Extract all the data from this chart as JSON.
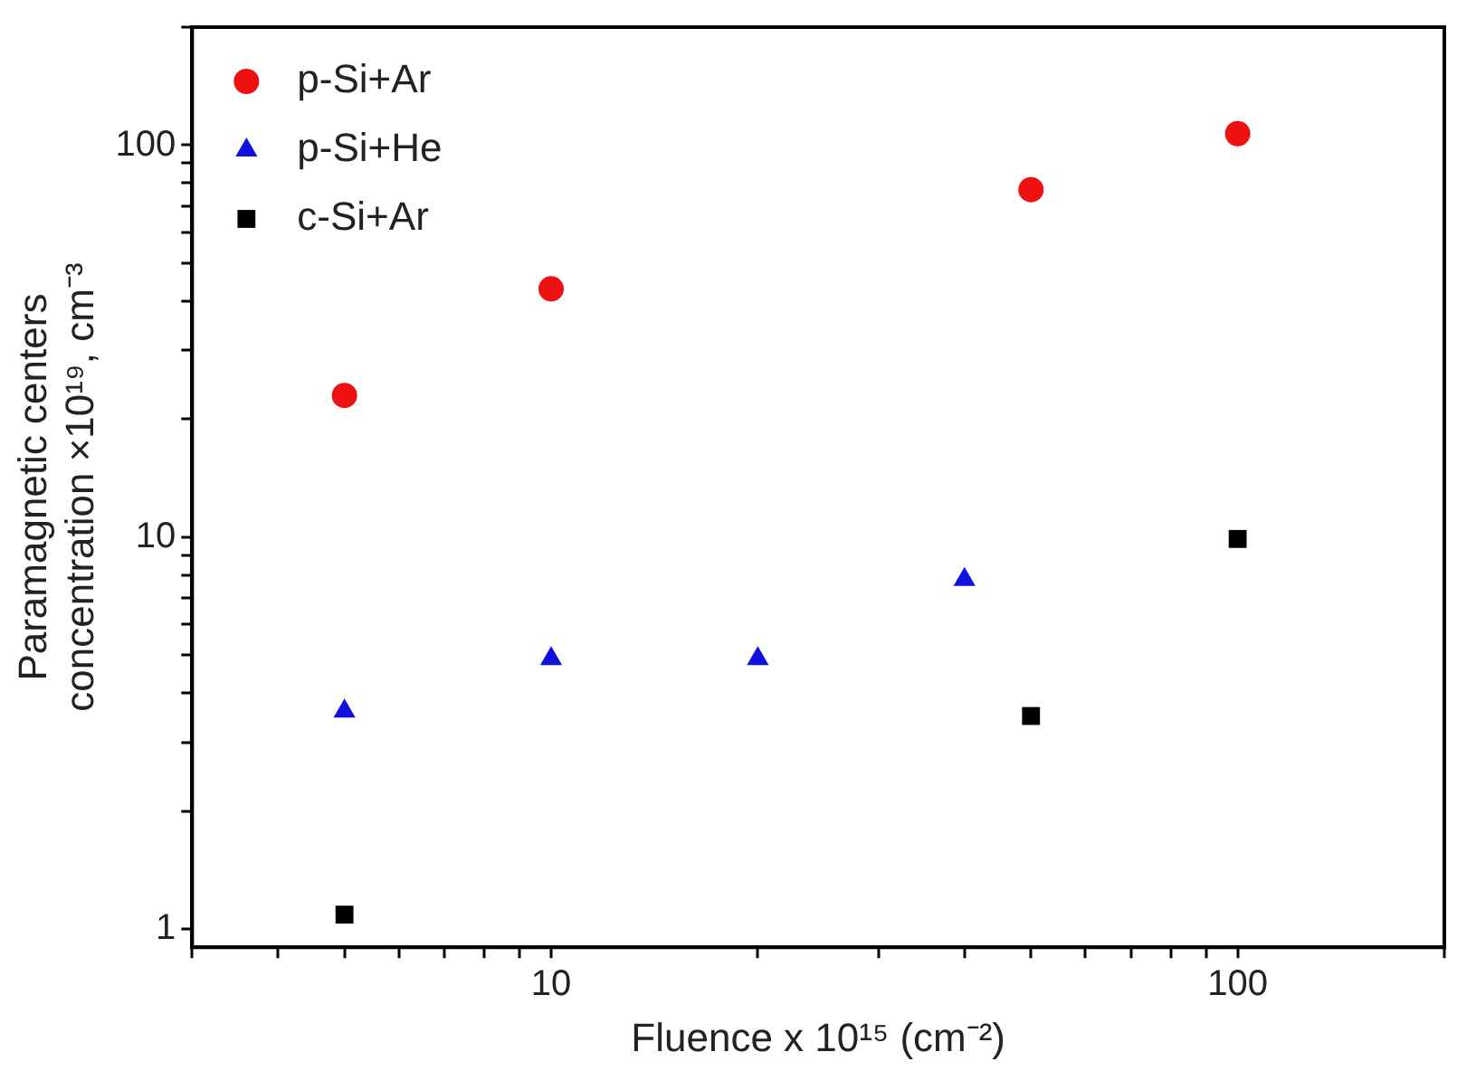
{
  "chart_data": {
    "type": "scatter",
    "xlabel": "Fluence x 10¹⁵ (cm⁻²)",
    "ylabel": "Paramagnetic centers concentration ×10¹⁹, cm⁻³",
    "log": "xy",
    "grid": false,
    "legend": "top left",
    "xlim": [
      3,
      200
    ],
    "ylim": [
      0.9,
      200
    ],
    "xticks": [
      {
        "value": 3,
        "label": null
      },
      {
        "value": 4,
        "label": null
      },
      {
        "value": 5,
        "label": null
      },
      {
        "value": 6,
        "label": null
      },
      {
        "value": 7,
        "label": null
      },
      {
        "value": 8,
        "label": null
      },
      {
        "value": 9,
        "label": null
      },
      10,
      {
        "value": 20,
        "label": null
      },
      {
        "value": 30,
        "label": null
      },
      {
        "value": 40,
        "label": null
      },
      {
        "value": 50,
        "label": null
      },
      {
        "value": 60,
        "label": null
      },
      {
        "value": 70,
        "label": null
      },
      {
        "value": 80,
        "label": null
      },
      {
        "value": 90,
        "label": null
      },
      100,
      {
        "value": 200,
        "label": null
      }
    ],
    "yticks": [
      1,
      {
        "value": 2,
        "label": null
      },
      {
        "value": 3,
        "label": null
      },
      {
        "value": 4,
        "label": null
      },
      {
        "value": 5,
        "label": null
      },
      {
        "value": 6,
        "label": null
      },
      {
        "value": 7,
        "label": null
      },
      {
        "value": 8,
        "label": null
      },
      {
        "value": 9,
        "label": null
      },
      10,
      {
        "value": 20,
        "label": null
      },
      {
        "value": 30,
        "label": null
      },
      {
        "value": 40,
        "label": null
      },
      {
        "value": 50,
        "label": null
      },
      {
        "value": 60,
        "label": null
      },
      {
        "value": 70,
        "label": null
      },
      {
        "value": 80,
        "label": null
      },
      {
        "value": 90,
        "label": null
      },
      100,
      {
        "value": 200,
        "label": null
      }
    ],
    "series": [
      {
        "name": "p-Si+Ar",
        "color": "#ee1111",
        "marker": "circle",
        "x": [
          5,
          10,
          50,
          100
        ],
        "values": [
          23,
          43,
          77,
          107
        ]
      },
      {
        "name": "p-Si+He",
        "color": "#1111dd",
        "marker": "triangle",
        "x": [
          5,
          10,
          20,
          40
        ],
        "values": [
          3.6,
          4.9,
          4.9,
          7.8
        ]
      },
      {
        "name": "c-Si+Ar",
        "color": "#000000",
        "marker": "square",
        "x": [
          5,
          50,
          100
        ],
        "values": [
          1.09,
          3.5,
          9.9
        ]
      }
    ]
  }
}
